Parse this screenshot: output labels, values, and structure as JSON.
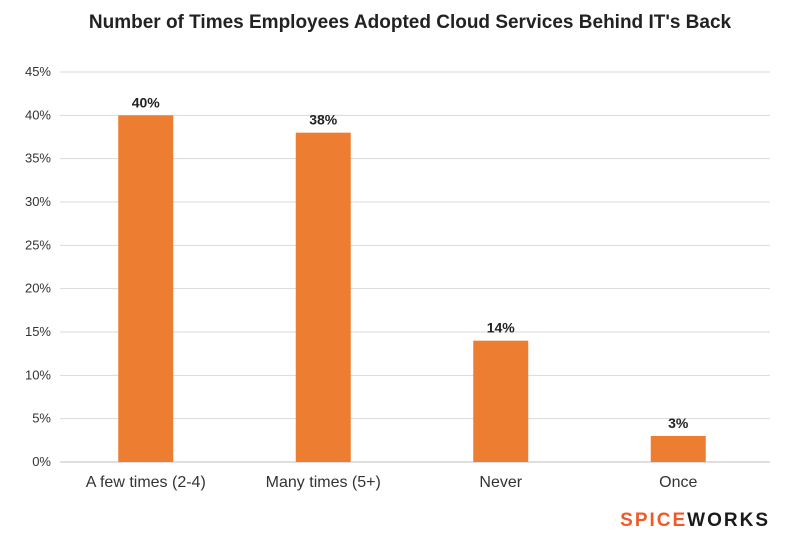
{
  "chart_data": {
    "type": "bar",
    "title": "Number of Times Employees Adopted Cloud Services Behind IT's Back",
    "categories": [
      "A few times (2-4)",
      "Many times (5+)",
      "Never",
      "Once"
    ],
    "values": [
      40,
      38,
      14,
      3
    ],
    "value_labels": [
      "40%",
      "38%",
      "14%",
      "3%"
    ],
    "ylim": [
      0,
      45
    ],
    "yticks": [
      "0%",
      "5%",
      "10%",
      "15%",
      "20%",
      "25%",
      "30%",
      "35%",
      "40%",
      "45%"
    ],
    "xlabel": "",
    "ylabel": "",
    "grid": true,
    "bar_color": "#ed7d31",
    "grid_color": "#d9d9d9"
  },
  "logo": {
    "part1": "SPICE",
    "part2": "WORKS"
  }
}
